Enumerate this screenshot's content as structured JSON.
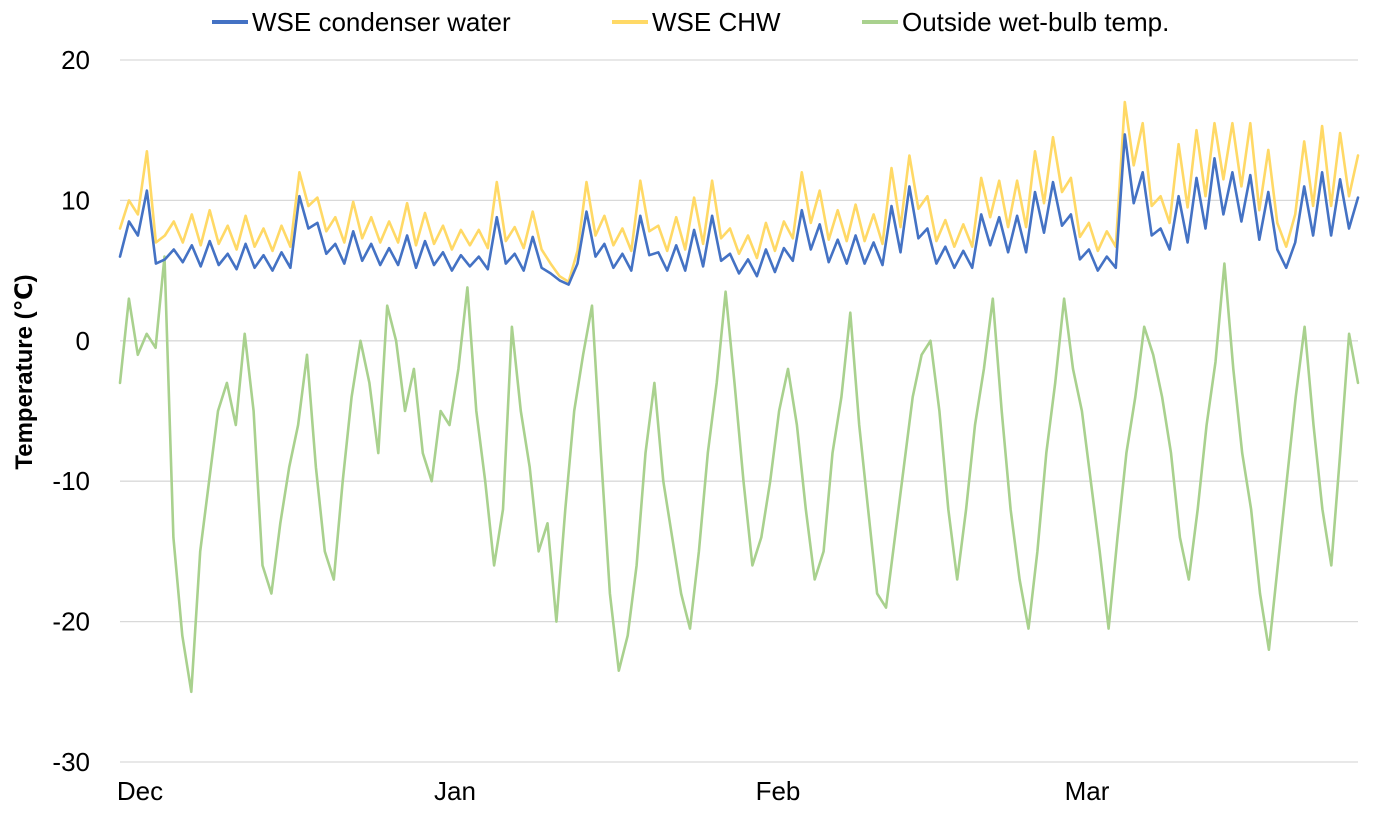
{
  "chart_data": {
    "type": "line",
    "title": "",
    "xlabel": "",
    "ylabel": "Temperature (℃)",
    "ylim": [
      -30,
      20
    ],
    "yticks": [
      "20",
      "10",
      "0",
      "-10",
      "-20",
      "-30"
    ],
    "x_ticks": [
      "Dec",
      "Jan",
      "Feb",
      "Mar"
    ],
    "grid": true,
    "legend_position": "top",
    "series": [
      {
        "name": "WSE condenser water",
        "color": "#4472C4",
        "values": [
          6.0,
          8.5,
          7.5,
          10.7,
          5.5,
          5.8,
          6.5,
          5.6,
          6.8,
          5.3,
          7.1,
          5.4,
          6.2,
          5.1,
          6.9,
          5.2,
          6.1,
          5.0,
          6.3,
          5.2,
          10.3,
          8.0,
          8.4,
          6.2,
          6.9,
          5.5,
          7.8,
          5.7,
          6.9,
          5.4,
          6.6,
          5.4,
          7.5,
          5.2,
          7.1,
          5.4,
          6.3,
          5.0,
          6.1,
          5.3,
          6.0,
          5.1,
          8.8,
          5.5,
          6.2,
          5.0,
          7.4,
          5.2,
          4.8,
          4.3,
          4.0,
          5.5,
          9.2,
          6.0,
          6.9,
          5.2,
          6.2,
          5.0,
          8.9,
          6.1,
          6.3,
          5.0,
          6.8,
          5.0,
          7.9,
          5.3,
          8.9,
          5.7,
          6.2,
          4.8,
          5.8,
          4.6,
          6.5,
          4.9,
          6.6,
          5.7,
          9.3,
          6.5,
          8.3,
          5.6,
          7.2,
          5.5,
          7.5,
          5.5,
          7.0,
          5.4,
          9.6,
          6.3,
          11.0,
          7.3,
          8.0,
          5.5,
          6.7,
          5.2,
          6.4,
          5.2,
          9.0,
          6.8,
          8.8,
          6.3,
          8.9,
          6.3,
          10.6,
          7.7,
          11.3,
          8.2,
          9.0,
          5.8,
          6.5,
          5.0,
          6.0,
          5.2,
          14.7,
          9.8,
          12.0,
          7.5,
          8.0,
          6.5,
          10.3,
          7.0,
          11.6,
          8.0,
          13.0,
          9.0,
          12.0,
          8.5,
          11.8,
          7.2,
          10.6,
          6.5,
          5.2,
          7.0,
          11.0,
          7.5,
          12.0,
          7.5,
          11.5,
          8.0,
          10.2
        ]
      },
      {
        "name": "WSE CHW",
        "color": "#FFD966",
        "values": [
          8.0,
          10.0,
          9.0,
          13.5,
          7.0,
          7.5,
          8.5,
          7.0,
          9.0,
          6.8,
          9.3,
          6.9,
          8.2,
          6.5,
          8.9,
          6.7,
          8.0,
          6.4,
          8.2,
          6.7,
          12.0,
          9.6,
          10.2,
          7.8,
          8.8,
          7.0,
          9.9,
          7.3,
          8.8,
          7.0,
          8.5,
          7.0,
          9.8,
          6.8,
          9.1,
          6.9,
          8.2,
          6.5,
          7.9,
          6.8,
          7.9,
          6.6,
          11.3,
          7.1,
          8.1,
          6.6,
          9.2,
          6.5,
          5.5,
          4.6,
          4.2,
          6.4,
          11.3,
          7.5,
          8.9,
          6.8,
          8.0,
          6.4,
          11.4,
          7.8,
          8.2,
          6.4,
          8.8,
          6.5,
          10.2,
          6.9,
          11.4,
          7.3,
          8.0,
          6.2,
          7.5,
          5.9,
          8.4,
          6.4,
          8.5,
          7.3,
          12.0,
          8.4,
          10.7,
          7.2,
          9.3,
          7.1,
          9.7,
          7.1,
          9.0,
          6.9,
          12.3,
          8.1,
          13.2,
          9.4,
          10.3,
          7.1,
          8.6,
          6.7,
          8.3,
          6.7,
          11.6,
          8.8,
          11.4,
          8.1,
          11.4,
          8.1,
          13.5,
          9.8,
          14.5,
          10.6,
          11.6,
          7.4,
          8.4,
          6.4,
          7.8,
          6.7,
          17.0,
          12.5,
          15.5,
          9.6,
          10.3,
          8.4,
          14.0,
          9.5,
          15.0,
          10.3,
          15.5,
          11.5,
          15.5,
          11.0,
          15.5,
          9.3,
          13.6,
          8.4,
          6.7,
          9.0,
          14.2,
          9.6,
          15.3,
          9.6,
          14.8,
          10.3,
          13.2
        ]
      },
      {
        "name": "Outside wet-bulb temp.",
        "color": "#A9D18E",
        "values": [
          -3.0,
          3.0,
          -1.0,
          0.5,
          -0.5,
          6.0,
          -14.0,
          -21.0,
          -25.0,
          -15.0,
          -10.0,
          -5.0,
          -3.0,
          -6.0,
          0.5,
          -5.0,
          -16.0,
          -18.0,
          -13.0,
          -9.0,
          -6.0,
          -1.0,
          -9.0,
          -15.0,
          -17.0,
          -10.0,
          -4.0,
          0.0,
          -3.0,
          -8.0,
          2.5,
          0.0,
          -5.0,
          -2.0,
          -8.0,
          -10.0,
          -5.0,
          -6.0,
          -2.0,
          3.8,
          -5.0,
          -10.0,
          -16.0,
          -12.0,
          1.0,
          -5.0,
          -9.0,
          -15.0,
          -13.0,
          -20.0,
          -12.0,
          -5.0,
          -1.0,
          2.5,
          -8.0,
          -18.0,
          -23.5,
          -21.0,
          -16.0,
          -8.0,
          -3.0,
          -10.0,
          -14.0,
          -18.0,
          -20.5,
          -15.0,
          -8.0,
          -3.0,
          3.5,
          -3.0,
          -10.0,
          -16.0,
          -14.0,
          -10.0,
          -5.0,
          -2.0,
          -6.0,
          -12.0,
          -17.0,
          -15.0,
          -8.0,
          -4.0,
          2.0,
          -6.0,
          -12.0,
          -18.0,
          -19.0,
          -14.0,
          -9.0,
          -4.0,
          -1.0,
          0.0,
          -5.0,
          -12.0,
          -17.0,
          -12.0,
          -6.0,
          -2.0,
          3.0,
          -5.0,
          -12.0,
          -17.0,
          -20.5,
          -15.0,
          -8.0,
          -3.0,
          3.0,
          -2.0,
          -5.0,
          -10.0,
          -15.0,
          -20.5,
          -14.0,
          -8.0,
          -4.0,
          1.0,
          -1.0,
          -4.0,
          -8.0,
          -14.0,
          -17.0,
          -12.0,
          -6.0,
          -1.5,
          5.5,
          -2.0,
          -8.0,
          -12.0,
          -18.0,
          -22.0,
          -16.0,
          -10.0,
          -4.0,
          1.0,
          -6.0,
          -12.0,
          -16.0,
          -8.0,
          0.5,
          -3.0
        ]
      }
    ]
  }
}
